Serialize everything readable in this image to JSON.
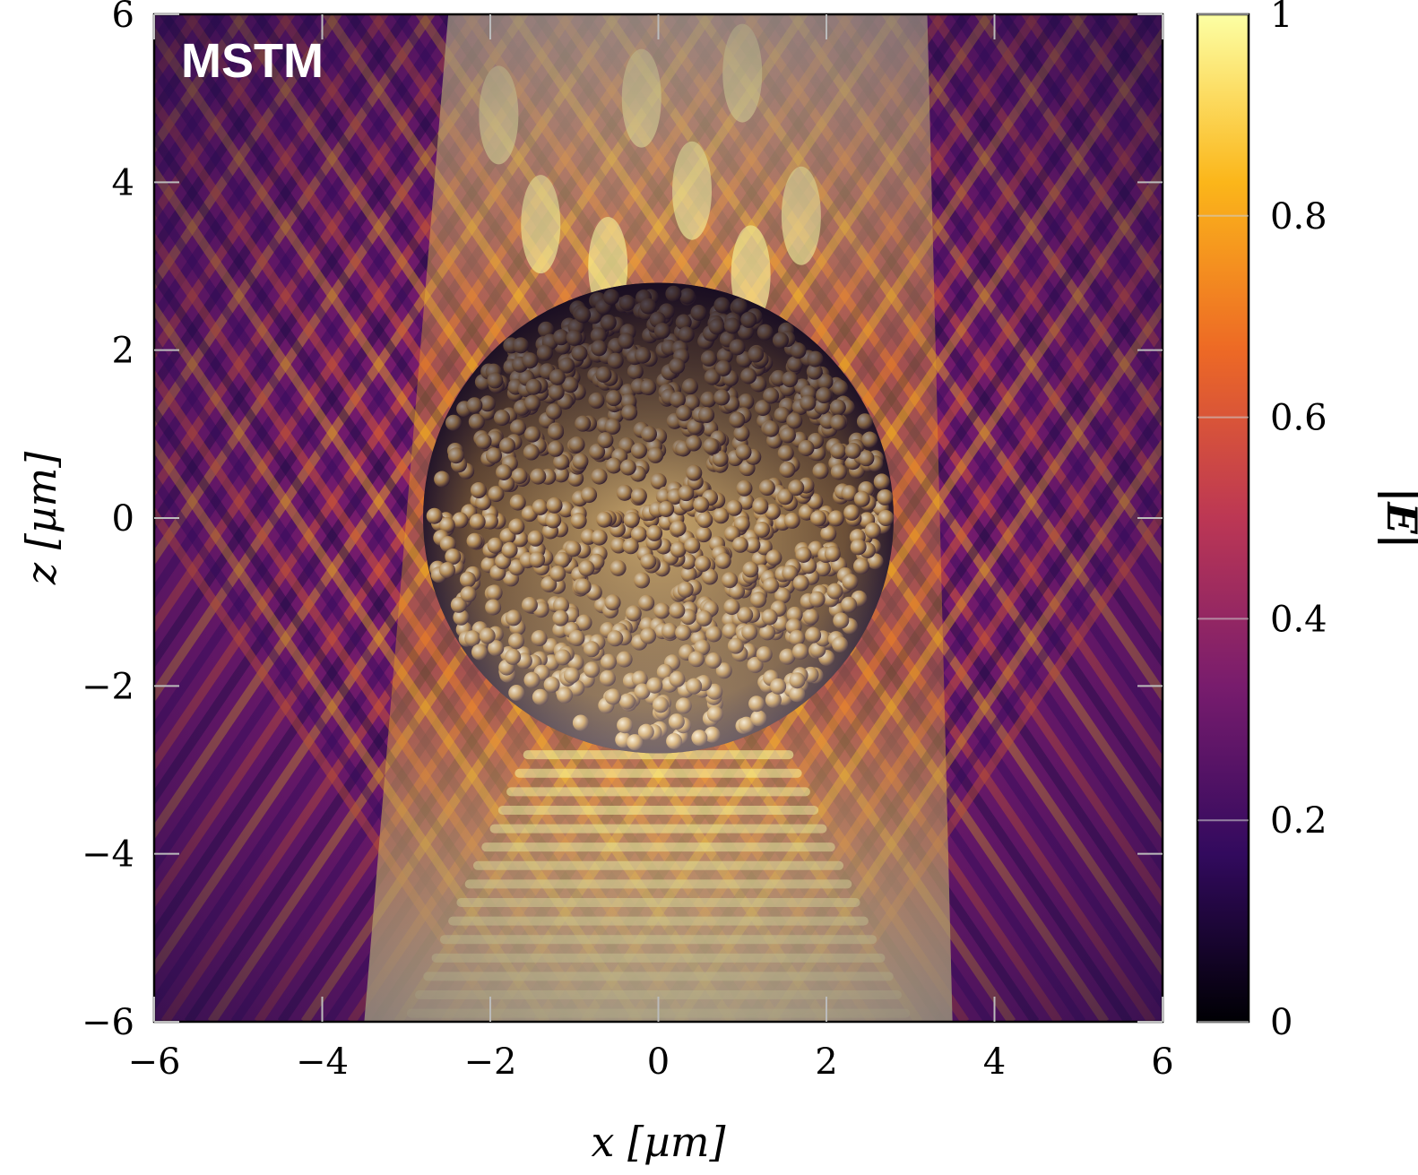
{
  "chart_data": {
    "type": "heatmap",
    "title": "",
    "annotation": "MSTM",
    "xlabel": "x [µm]",
    "ylabel": "z [µm]",
    "colorbar_label": "|E|",
    "xlim": [
      -6,
      6
    ],
    "ylim": [
      -6,
      6
    ],
    "clim": [
      0,
      1
    ],
    "x_ticks": [
      "−6",
      "−4",
      "−2",
      "0",
      "2",
      "4",
      "6"
    ],
    "y_ticks": [
      "−6",
      "−4",
      "−2",
      "0",
      "2",
      "4",
      "6"
    ],
    "colorbar_ticks": [
      "0",
      "0.2",
      "0.4",
      "0.6",
      "0.8",
      "1"
    ],
    "x_tick_values": [
      -6,
      -4,
      -2,
      0,
      2,
      4,
      6
    ],
    "y_tick_values": [
      -6,
      -4,
      -2,
      0,
      2,
      4,
      6
    ],
    "colorbar_tick_values": [
      0,
      0.2,
      0.4,
      0.6,
      0.8,
      1
    ],
    "colormap": "inferno",
    "colormap_stops": [
      "#000004",
      "#320a5e",
      "#781c6d",
      "#bc3754",
      "#ed6925",
      "#fbb61a",
      "#fcffa4"
    ],
    "scatterer_cluster": {
      "center_x": 0,
      "center_z": 0,
      "radius": 2.8
    },
    "grid": false
  }
}
